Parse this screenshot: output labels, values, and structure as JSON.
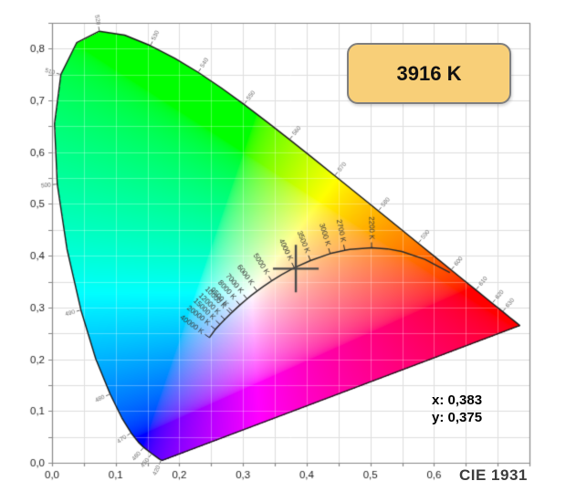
{
  "header_badge": {
    "label": "3916 K"
  },
  "readout": {
    "x": "x: 0,383",
    "y": "y: 0,375"
  },
  "caption": "CIE 1931",
  "colors": {
    "badge_fill": "#f8cf78",
    "badge_border": "#7f7f7f",
    "grid": "#dedede",
    "grid_inner": "rgba(255,255,255,0.30)",
    "axis": "#888888",
    "axis_text": "#222222",
    "locus_outline": "#1a1a1a",
    "planckian_curve": "#2a2a2a",
    "temp_text": "#333333",
    "wavelength_text": "#6a6a6a",
    "crosshair": "#4a4a4a"
  },
  "chart_data": {
    "type": "heatmap",
    "title": "CIE 1931 chromaticity diagram",
    "xlabel": "",
    "ylabel": "",
    "xlim": [
      0,
      0.75
    ],
    "ylim": [
      0,
      0.85
    ],
    "grid": true,
    "grid_step": 0.05,
    "x_ticks": [
      {
        "v": 0.0,
        "label": "0,0"
      },
      {
        "v": 0.1,
        "label": "0,1"
      },
      {
        "v": 0.2,
        "label": "0,2"
      },
      {
        "v": 0.3,
        "label": "0,3"
      },
      {
        "v": 0.4,
        "label": "0,4"
      },
      {
        "v": 0.5,
        "label": "0,5"
      },
      {
        "v": 0.6,
        "label": "0,6"
      }
    ],
    "y_ticks": [
      {
        "v": 0.0,
        "label": "0,0"
      },
      {
        "v": 0.1,
        "label": "0,1"
      },
      {
        "v": 0.2,
        "label": "0,2"
      },
      {
        "v": 0.3,
        "label": "0,3"
      },
      {
        "v": 0.4,
        "label": "0,4"
      },
      {
        "v": 0.5,
        "label": "0,5"
      },
      {
        "v": 0.6,
        "label": "0,6"
      },
      {
        "v": 0.7,
        "label": "0,7"
      },
      {
        "v": 0.8,
        "label": "0,8"
      }
    ],
    "marked_point": {
      "x": 0.383,
      "y": 0.375,
      "cct": "3916 K"
    },
    "spectral_locus": [
      [
        380,
        0.1741,
        0.005
      ],
      [
        390,
        0.1738,
        0.0049
      ],
      [
        400,
        0.1733,
        0.0048
      ],
      [
        410,
        0.1726,
        0.0048
      ],
      [
        420,
        0.1714,
        0.0051
      ],
      [
        430,
        0.1689,
        0.0069
      ],
      [
        440,
        0.1644,
        0.0109
      ],
      [
        450,
        0.1566,
        0.0177
      ],
      [
        460,
        0.144,
        0.0297
      ],
      [
        465,
        0.1355,
        0.0399
      ],
      [
        470,
        0.1241,
        0.0578
      ],
      [
        475,
        0.1096,
        0.0868
      ],
      [
        480,
        0.0913,
        0.1327
      ],
      [
        485,
        0.0687,
        0.2007
      ],
      [
        490,
        0.0454,
        0.295
      ],
      [
        495,
        0.0235,
        0.4127
      ],
      [
        500,
        0.0082,
        0.5384
      ],
      [
        505,
        0.0039,
        0.6548
      ],
      [
        510,
        0.0139,
        0.7502
      ],
      [
        515,
        0.0389,
        0.812
      ],
      [
        520,
        0.0743,
        0.8338
      ],
      [
        525,
        0.1142,
        0.8262
      ],
      [
        530,
        0.1547,
        0.8059
      ],
      [
        535,
        0.1929,
        0.7816
      ],
      [
        540,
        0.2296,
        0.7543
      ],
      [
        545,
        0.2658,
        0.7243
      ],
      [
        550,
        0.3016,
        0.6923
      ],
      [
        555,
        0.3373,
        0.6589
      ],
      [
        560,
        0.3731,
        0.6245
      ],
      [
        565,
        0.4087,
        0.5896
      ],
      [
        570,
        0.4441,
        0.5547
      ],
      [
        575,
        0.4788,
        0.5202
      ],
      [
        580,
        0.5125,
        0.4866
      ],
      [
        585,
        0.5448,
        0.4544
      ],
      [
        590,
        0.5752,
        0.4242
      ],
      [
        595,
        0.6029,
        0.3965
      ],
      [
        600,
        0.627,
        0.3725
      ],
      [
        605,
        0.6482,
        0.3514
      ],
      [
        610,
        0.6658,
        0.334
      ],
      [
        615,
        0.6801,
        0.3197
      ],
      [
        620,
        0.6915,
        0.3083
      ],
      [
        630,
        0.7079,
        0.292
      ],
      [
        640,
        0.719,
        0.2809
      ],
      [
        650,
        0.726,
        0.274
      ],
      [
        660,
        0.73,
        0.27
      ],
      [
        680,
        0.7334,
        0.2666
      ],
      [
        700,
        0.7347,
        0.2653
      ]
    ],
    "wavelength_labels": [
      420,
      450,
      460,
      470,
      480,
      490,
      500,
      510,
      520,
      530,
      540,
      550,
      560,
      570,
      580,
      590,
      600,
      610,
      620,
      630
    ],
    "planckian_locus": [
      {
        "t": 40000,
        "x": 0.2472,
        "y": 0.2418,
        "labeled": true
      },
      {
        "t": 20000,
        "x": 0.2565,
        "y": 0.2577,
        "labeled": true
      },
      {
        "t": 15000,
        "x": 0.2637,
        "y": 0.2673,
        "labeled": true
      },
      {
        "t": 12000,
        "x": 0.2713,
        "y": 0.2768,
        "labeled": true
      },
      {
        "t": 10000,
        "x": 0.2807,
        "y": 0.2884,
        "labeled": true
      },
      {
        "t": 9500,
        "x": 0.2836,
        "y": 0.2916,
        "labeled": true
      },
      {
        "t": 8000,
        "x": 0.2952,
        "y": 0.3048,
        "labeled": true
      },
      {
        "t": 7000,
        "x": 0.3064,
        "y": 0.3166,
        "labeled": true
      },
      {
        "t": 6500,
        "x": 0.3135,
        "y": 0.3237,
        "labeled": false
      },
      {
        "t": 6000,
        "x": 0.3221,
        "y": 0.3318,
        "labeled": true
      },
      {
        "t": 5500,
        "x": 0.3324,
        "y": 0.341,
        "labeled": false
      },
      {
        "t": 5000,
        "x": 0.3451,
        "y": 0.3516,
        "labeled": true
      },
      {
        "t": 4500,
        "x": 0.3608,
        "y": 0.3636,
        "labeled": false
      },
      {
        "t": 4000,
        "x": 0.3805,
        "y": 0.3768,
        "labeled": true
      },
      {
        "t": 3500,
        "x": 0.4059,
        "y": 0.3907,
        "labeled": true
      },
      {
        "t": 3000,
        "x": 0.4369,
        "y": 0.4041,
        "labeled": true
      },
      {
        "t": 2700,
        "x": 0.4599,
        "y": 0.4106,
        "labeled": true
      },
      {
        "t": 2500,
        "x": 0.4678,
        "y": 0.4121,
        "labeled": false
      },
      {
        "t": 2200,
        "x": 0.502,
        "y": 0.4152,
        "labeled": true
      },
      {
        "t": 2000,
        "x": 0.5267,
        "y": 0.4133,
        "labeled": false
      },
      {
        "t": 1800,
        "x": 0.5493,
        "y": 0.4082,
        "labeled": false
      },
      {
        "t": 1500,
        "x": 0.5857,
        "y": 0.3931,
        "labeled": false
      },
      {
        "t": 1200,
        "x": 0.6249,
        "y": 0.3676,
        "labeled": false
      }
    ]
  }
}
